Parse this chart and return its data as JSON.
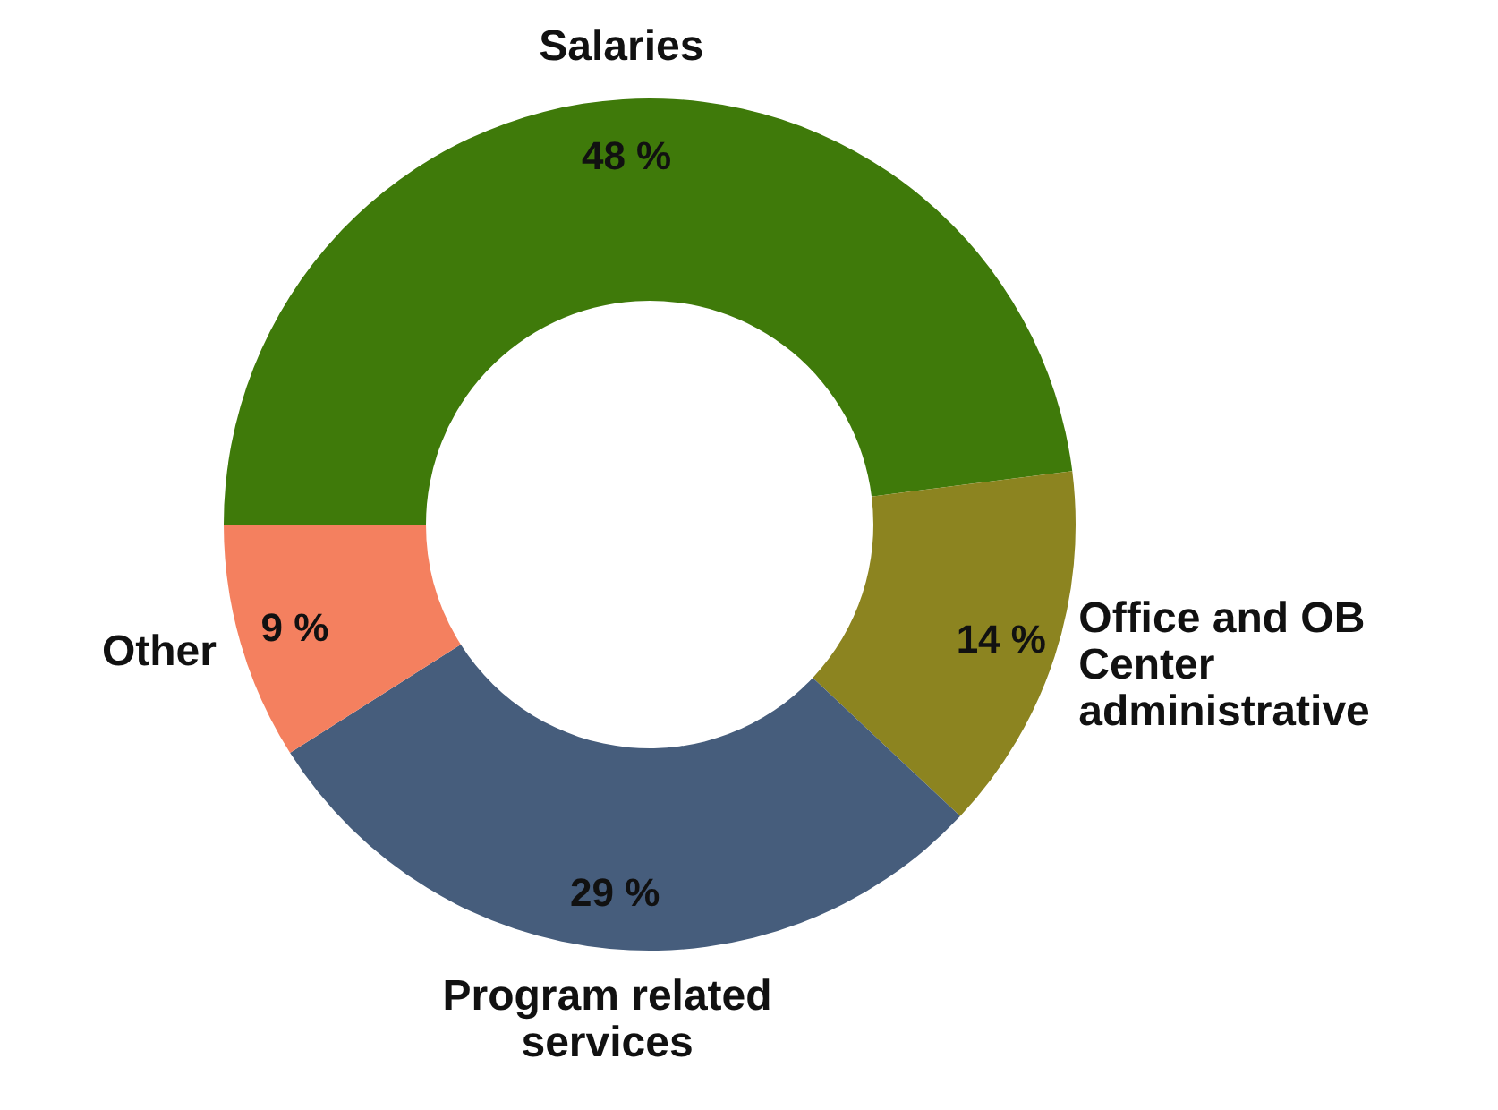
{
  "chart_data": {
    "type": "donut",
    "categories": [
      "Salaries",
      "Office and OB Center administrative",
      "Program related services",
      "Other"
    ],
    "values": [
      48,
      14,
      29,
      9
    ],
    "value_labels": [
      "48 %",
      "14 %",
      "29 %",
      "9 %"
    ],
    "colors": [
      "#3f7a0a",
      "#8c8420",
      "#465d7c",
      "#f4805f"
    ],
    "legend": false
  }
}
